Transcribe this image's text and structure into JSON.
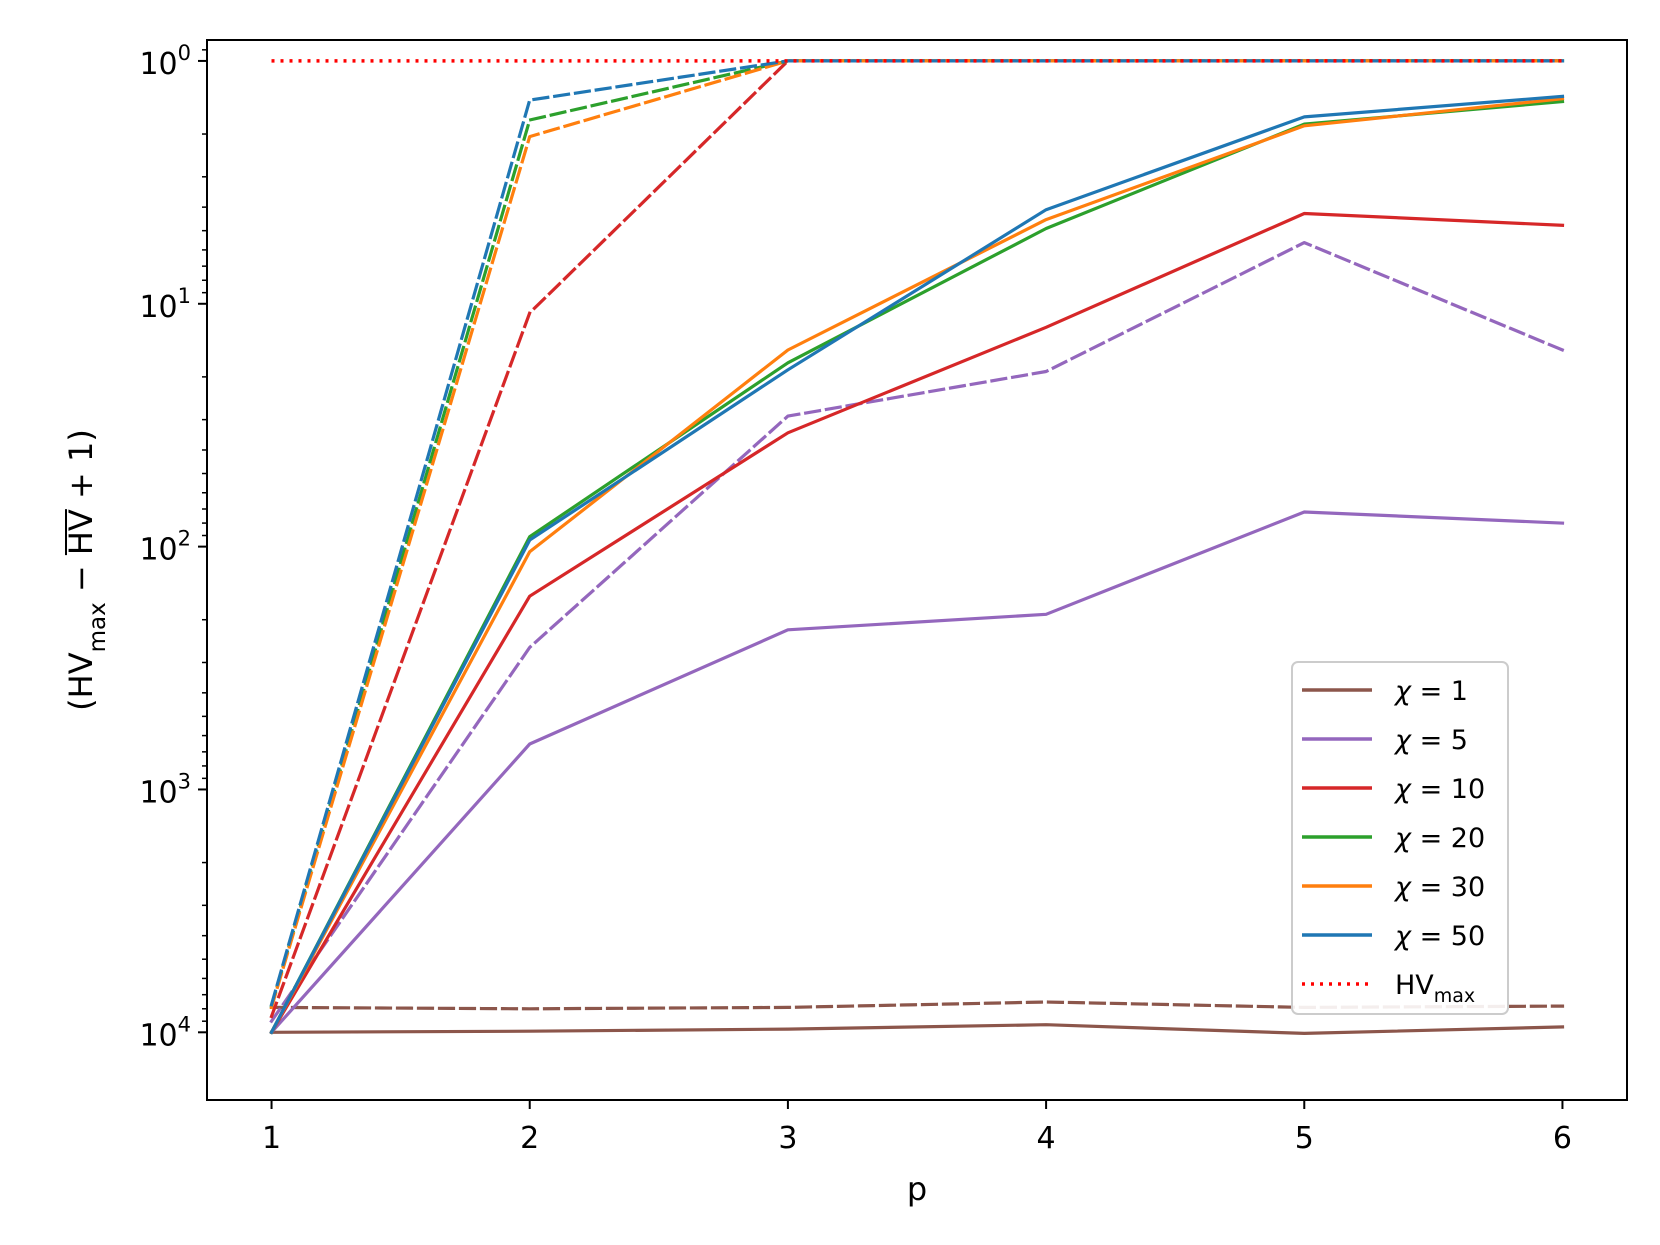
{
  "chart_data": {
    "type": "line",
    "title": "",
    "xlabel": "p",
    "ylabel": {
      "open": "(HV",
      "sub_max": "max",
      "mid": " − ",
      "hv_bar": "HV",
      "close": " + 1)"
    },
    "x": [
      1,
      2,
      3,
      4,
      5,
      6
    ],
    "xlim": [
      0.75,
      6.25
    ],
    "x_tick_labels": [
      "1",
      "2",
      "3",
      "4",
      "5",
      "6"
    ],
    "yscale": "log",
    "yaxis_inverted": true,
    "ylim": [
      0.82,
      19000
    ],
    "y_ticks": [
      {
        "value": 1,
        "base": "10",
        "exp": "0"
      },
      {
        "value": 10,
        "base": "10",
        "exp": "1"
      },
      {
        "value": 100,
        "base": "10",
        "exp": "2"
      },
      {
        "value": 1000,
        "base": "10",
        "exp": "3"
      },
      {
        "value": 10000,
        "base": "10",
        "exp": "4"
      }
    ],
    "grid": false,
    "legend_position": "lower-right",
    "series": [
      {
        "name": "χ = 1",
        "label_var": "χ",
        "label_val": " = 1",
        "color": "#8c564b",
        "style": "solid",
        "in_legend": true,
        "values": [
          10000,
          9900,
          9700,
          9300,
          10100,
          9500
        ]
      },
      {
        "name": "χ = 5",
        "label_var": "χ",
        "label_val": " = 5",
        "color": "#9467bd",
        "style": "solid",
        "in_legend": true,
        "values": [
          10000,
          650,
          220,
          190,
          72,
          80
        ]
      },
      {
        "name": "χ = 10",
        "label_var": "χ",
        "label_val": " = 10",
        "color": "#d62728",
        "style": "solid",
        "in_legend": true,
        "values": [
          10000,
          160,
          34,
          12.5,
          4.25,
          4.75
        ]
      },
      {
        "name": "χ = 20",
        "label_var": "χ",
        "label_val": " = 20",
        "color": "#2ca02c",
        "style": "solid",
        "in_legend": true,
        "values": [
          10000,
          91,
          17.5,
          4.9,
          1.82,
          1.47
        ]
      },
      {
        "name": "χ = 30",
        "label_var": "χ",
        "label_val": " = 30",
        "color": "#ff7f0e",
        "style": "solid",
        "in_legend": true,
        "values": [
          10000,
          105,
          15.5,
          4.5,
          1.85,
          1.43
        ]
      },
      {
        "name": "χ = 50",
        "label_var": "χ",
        "label_val": " = 50",
        "color": "#1f77b4",
        "style": "solid",
        "in_legend": true,
        "values": [
          10000,
          94,
          18.7,
          4.1,
          1.7,
          1.4
        ]
      },
      {
        "name": "χ = 1 (dashed)",
        "color": "#8c564b",
        "style": "dashed",
        "in_legend": false,
        "values": [
          7900,
          8000,
          7900,
          7500,
          7900,
          7800
        ]
      },
      {
        "name": "χ = 5 (dashed)",
        "color": "#9467bd",
        "style": "dashed",
        "in_legend": false,
        "values": [
          9000,
          260,
          29,
          19,
          5.6,
          15.5
        ]
      },
      {
        "name": "χ = 10 (dashed)",
        "color": "#d62728",
        "style": "dashed",
        "in_legend": false,
        "values": [
          8600,
          10.9,
          1.0,
          1.0,
          1.0,
          1.0
        ]
      },
      {
        "name": "χ = 20 (dashed)",
        "color": "#2ca02c",
        "style": "dashed",
        "in_legend": false,
        "values": [
          7800,
          1.75,
          1.0,
          1.0,
          1.0,
          1.0
        ]
      },
      {
        "name": "χ = 30 (dashed)",
        "color": "#ff7f0e",
        "style": "dashed",
        "in_legend": false,
        "values": [
          7900,
          2.05,
          1.0,
          1.0,
          1.0,
          1.0
        ]
      },
      {
        "name": "χ = 50 (dashed)",
        "color": "#1f77b4",
        "style": "dashed",
        "in_legend": false,
        "values": [
          7700,
          1.45,
          1.0,
          1.0,
          1.0,
          1.0
        ]
      },
      {
        "name": "HVmax",
        "label_var": "HV",
        "label_sub": "max",
        "color": "#ff0000",
        "style": "dotted",
        "in_legend": true,
        "values": [
          1,
          1,
          1,
          1,
          1,
          1
        ]
      }
    ]
  }
}
